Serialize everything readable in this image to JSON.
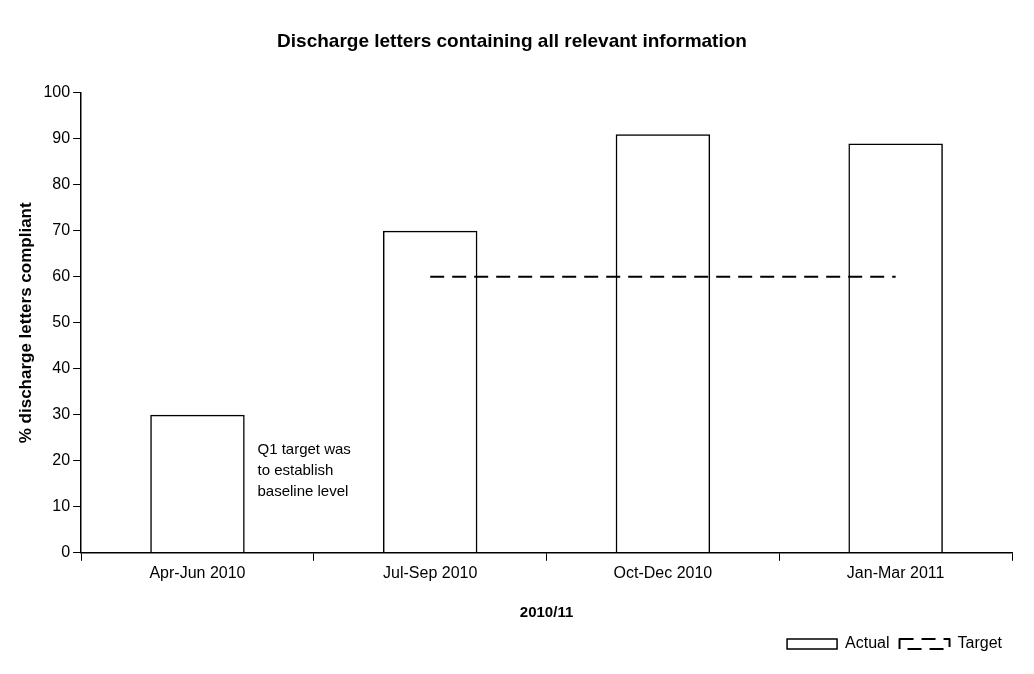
{
  "chart_data": {
    "type": "bar",
    "title": "Discharge letters containing all relevant information",
    "xlabel": "2010/11",
    "ylabel": "% discharge letters compliant",
    "categories": [
      "Apr-Jun 2010",
      "Jul-Sep 2010",
      "Oct-Dec 2010",
      "Jan-Mar 2011"
    ],
    "series": [
      {
        "name": "Actual",
        "color": "#000000",
        "values": [
          30,
          70,
          91,
          89
        ]
      },
      {
        "name": "Target",
        "type": "line",
        "color": "#000000",
        "line_style": "dashed",
        "values": [
          null,
          60,
          60,
          60
        ]
      }
    ],
    "ylim": [
      0,
      100
    ],
    "yticks": [
      0,
      10,
      20,
      30,
      40,
      50,
      60,
      70,
      80,
      90,
      100
    ],
    "grid": false,
    "legend": "bottom right",
    "marker": "none",
    "annotations": [
      "Q1 target was to establish baseline level"
    ]
  }
}
